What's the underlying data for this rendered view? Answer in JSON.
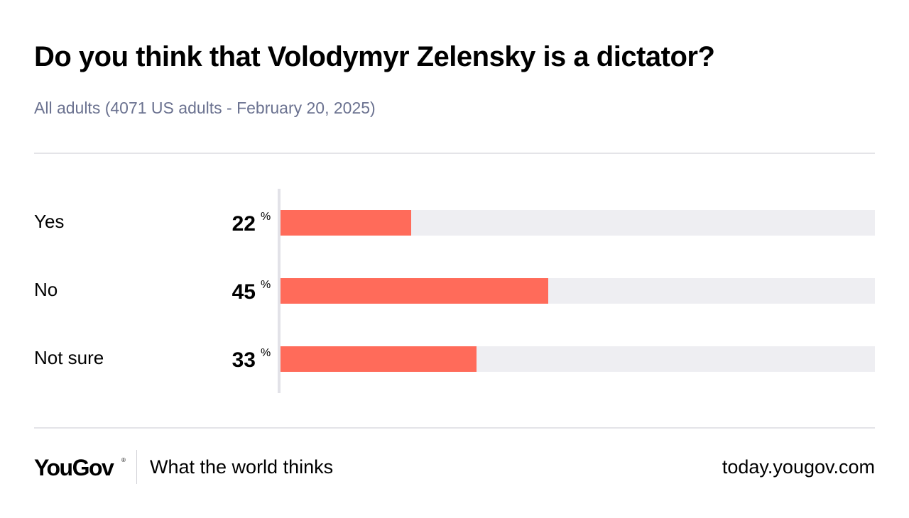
{
  "chart_data": {
    "type": "bar",
    "orientation": "horizontal",
    "title": "Do you think that Volodymyr Zelensky is a dictator?",
    "subtitle": "All adults (4071 US adults - February 20, 2025)",
    "categories": [
      "Yes",
      "No",
      "Not sure"
    ],
    "values": [
      22,
      45,
      33
    ],
    "unit": "%",
    "xlim": [
      0,
      100
    ],
    "bar_color": "#ff6b5a",
    "track_color": "#eeeef2",
    "grid": false
  },
  "footer": {
    "brand": "YouGov",
    "brand_mark": "®",
    "tagline": "What the world thinks",
    "site": "today.yougov.com"
  }
}
